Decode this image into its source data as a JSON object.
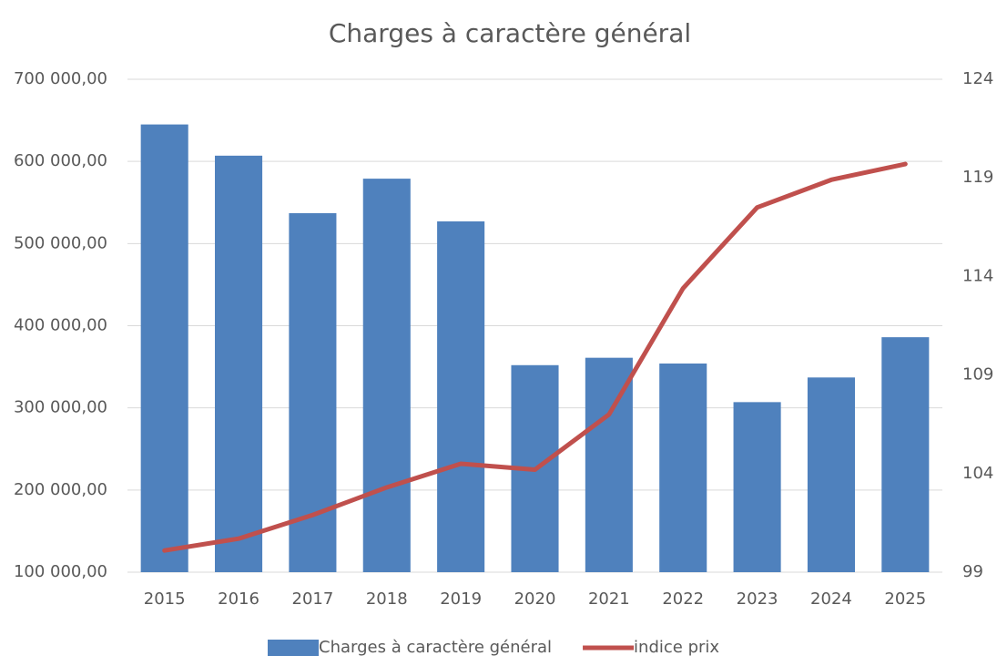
{
  "chart_data": {
    "type": "bar-line",
    "title": "Charges à caractère général",
    "categories": [
      "2015",
      "2016",
      "2017",
      "2018",
      "2019",
      "2020",
      "2021",
      "2022",
      "2023",
      "2024",
      "2025"
    ],
    "series": [
      {
        "name": "Charges à caractère général",
        "type": "bar",
        "color": "#4f81bd",
        "values": [
          645000,
          607000,
          537000,
          579000,
          527000,
          352000,
          361000,
          354000,
          307000,
          337000,
          386000
        ]
      },
      {
        "name": "indice prix",
        "type": "line",
        "axis": "y2",
        "color": "#c0504d",
        "values": [
          100.1,
          100.7,
          101.9,
          103.3,
          104.5,
          104.2,
          107.0,
          113.4,
          117.5,
          118.9,
          119.7
        ]
      }
    ],
    "ylim": [
      100000,
      700000
    ],
    "yticks": [
      {
        "value": 100000,
        "label": "100 000,00"
      },
      {
        "value": 200000,
        "label": "200 000,00"
      },
      {
        "value": 300000,
        "label": "300 000,00"
      },
      {
        "value": 400000,
        "label": "400 000,00"
      },
      {
        "value": 500000,
        "label": "500 000,00"
      },
      {
        "value": 600000,
        "label": "600 000,00"
      },
      {
        "value": 700000,
        "label": "700 000,00"
      }
    ],
    "y2lim": [
      99,
      124
    ],
    "y2ticks": [
      99,
      104,
      109,
      114,
      119,
      124
    ],
    "grid": true,
    "legend": "bottom"
  }
}
